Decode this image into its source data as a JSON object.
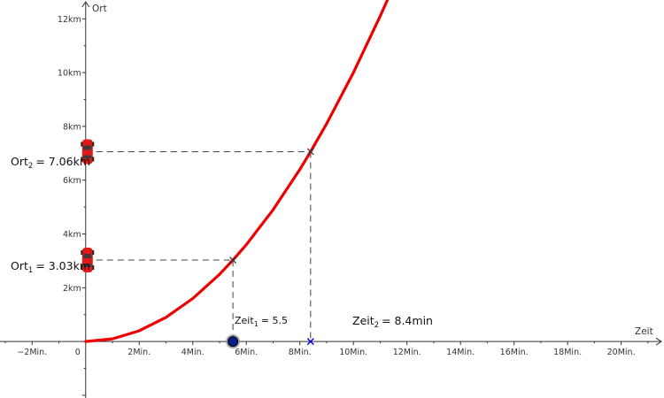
{
  "chart_data": {
    "type": "line",
    "title": "",
    "xlabel": "Zeit",
    "ylabel": "Ort",
    "xlim": [
      -3.2,
      21.6
    ],
    "ylim": [
      -2.1,
      12.7
    ],
    "grid": false,
    "x_ticks": [
      {
        "value": -2,
        "label": "−2Min."
      },
      {
        "value": 0,
        "label": "0"
      },
      {
        "value": 2,
        "label": "2Min."
      },
      {
        "value": 4,
        "label": "4Min."
      },
      {
        "value": 6,
        "label": "6Min."
      },
      {
        "value": 8,
        "label": "8Min."
      },
      {
        "value": 10,
        "label": "10Min."
      },
      {
        "value": 12,
        "label": "12Min."
      },
      {
        "value": 14,
        "label": "14Min."
      },
      {
        "value": 16,
        "label": "16Min."
      },
      {
        "value": 18,
        "label": "18Min."
      },
      {
        "value": 20,
        "label": "20Min."
      }
    ],
    "y_ticks": [
      {
        "value": 2,
        "label": "2km"
      },
      {
        "value": 4,
        "label": "4km"
      },
      {
        "value": 6,
        "label": "6km"
      },
      {
        "value": 8,
        "label": "8km"
      },
      {
        "value": 10,
        "label": "10km"
      },
      {
        "value": 12,
        "label": "12km"
      }
    ],
    "series": [
      {
        "color": "#ee0000",
        "x": [
          0,
          1,
          2,
          3,
          4,
          5,
          5.5,
          6,
          7,
          8,
          8.4,
          9,
          10,
          11,
          11.3
        ],
        "y": [
          0,
          0.1,
          0.4,
          0.9,
          1.6,
          2.5,
          3.03,
          3.6,
          4.9,
          6.4,
          7.06,
          8.1,
          10.0,
          12.1,
          12.77
        ]
      }
    ],
    "markers": [
      {
        "x": 5.5,
        "y": 3.03
      },
      {
        "x": 8.4,
        "y": 7.06
      }
    ],
    "annotations": {
      "ort1": {
        "base": "Ort",
        "sub": "1",
        "value": "= 3.03km",
        "y": 3.03
      },
      "ort2": {
        "base": "Ort",
        "sub": "2",
        "value": "= 7.06km",
        "y": 7.06
      },
      "zeit1": {
        "base": "Zeit",
        "sub": "1",
        "value": "= 5.5",
        "x": 5.5
      },
      "zeit2": {
        "base": "Zeit",
        "sub": "2",
        "value": "= 8.4min",
        "x": 8.4
      }
    },
    "colors": {
      "curve": "#ee0000",
      "axis": "#333333",
      "dashed": "#444444",
      "slider_point": "#0a1f8f",
      "zeit2_marker": "#0000dd",
      "car": "#e01818"
    }
  }
}
